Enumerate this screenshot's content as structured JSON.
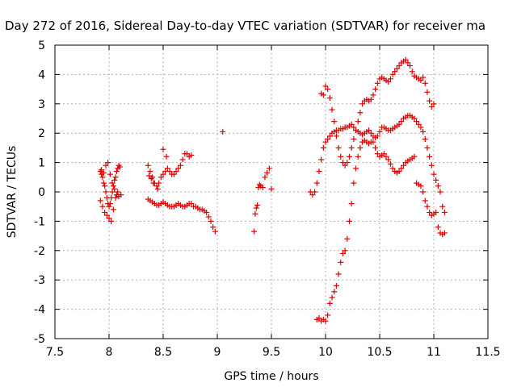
{
  "chart_data": {
    "type": "scatter",
    "title": "Day 272 of 2016, Sidereal Day-to-day VTEC variation (SDTVAR) for receiver ma",
    "xlabel": "GPS time / hours",
    "ylabel": "SDTVAR / TECUs",
    "xlim": [
      7.5,
      11.5
    ],
    "ylim": [
      -5,
      5
    ],
    "x_ticks": [
      7.5,
      8,
      8.5,
      9,
      9.5,
      10,
      10.5,
      11,
      11.5
    ],
    "x_tick_labels": [
      "7.5",
      "8",
      "8.5",
      "9",
      "9.5",
      "10",
      "10.5",
      "11",
      "11.5"
    ],
    "y_ticks": [
      -5,
      -4,
      -3,
      -2,
      -1,
      0,
      1,
      2,
      3,
      4,
      5
    ],
    "y_tick_labels": [
      "-5",
      "-4",
      "-3",
      "-2",
      "-1",
      "0",
      "1",
      "2",
      "3",
      "4",
      "5"
    ],
    "grid": true,
    "marker": "+",
    "marker_color": "#e00000",
    "series": [
      {
        "x": [
          7.92,
          7.93,
          7.94,
          7.95,
          7.96,
          7.97,
          7.98,
          7.99,
          8.0,
          8.01,
          8.02,
          8.03,
          8.04,
          8.05,
          8.06,
          8.07,
          8.08,
          8.09,
          8.1,
          7.92,
          7.94,
          7.96,
          7.98,
          8.0,
          8.02,
          8.04,
          8.06,
          8.08,
          7.93,
          7.95,
          7.97,
          7.99,
          8.01,
          8.03,
          8.05,
          8.07,
          8.09,
          8.11
        ],
        "y": [
          0.7,
          0.6,
          0.5,
          0.3,
          0.2,
          0.0,
          -0.2,
          -0.4,
          -0.5,
          -0.4,
          -0.2,
          0.0,
          0.2,
          0.4,
          0.5,
          0.7,
          0.8,
          0.9,
          0.85,
          -0.3,
          -0.5,
          -0.7,
          -0.8,
          -0.9,
          -1.0,
          -0.6,
          -0.2,
          0.0,
          0.75,
          0.65,
          0.9,
          1.0,
          0.6,
          0.3,
          0.1,
          -0.1,
          -0.15,
          -0.1
        ]
      },
      {
        "x": [
          8.36,
          8.38,
          8.4,
          8.42,
          8.44,
          8.46,
          8.48,
          8.5,
          8.52,
          8.54,
          8.56,
          8.58,
          8.6,
          8.62,
          8.64,
          8.66,
          8.68,
          8.7,
          8.72,
          8.74,
          8.76,
          8.36,
          8.38,
          8.4,
          8.42,
          8.44,
          8.46,
          8.48,
          8.5,
          8.52,
          8.54,
          8.56,
          8.58,
          8.6,
          8.62,
          8.64,
          8.66,
          8.68,
          8.7,
          8.72,
          8.74,
          8.76,
          8.78,
          8.8,
          8.82,
          8.84,
          8.86,
          8.88,
          8.9,
          8.92,
          8.94,
          8.96,
          8.98,
          8.37,
          8.39,
          8.41,
          8.45,
          8.5,
          8.53
        ],
        "y": [
          0.9,
          0.7,
          0.5,
          0.3,
          0.2,
          0.3,
          0.5,
          0.6,
          0.7,
          0.8,
          0.7,
          0.6,
          0.6,
          0.7,
          0.8,
          0.9,
          1.1,
          1.3,
          1.3,
          1.2,
          1.25,
          -0.25,
          -0.3,
          -0.35,
          -0.4,
          -0.45,
          -0.45,
          -0.4,
          -0.35,
          -0.4,
          -0.45,
          -0.5,
          -0.5,
          -0.5,
          -0.45,
          -0.4,
          -0.45,
          -0.5,
          -0.5,
          -0.45,
          -0.4,
          -0.4,
          -0.5,
          -0.5,
          -0.55,
          -0.6,
          -0.6,
          -0.65,
          -0.7,
          -0.85,
          -1.0,
          -1.2,
          -1.35,
          0.55,
          0.45,
          0.3,
          0.1,
          1.45,
          1.2
        ]
      },
      {
        "x": [
          9.05,
          9.34,
          9.35,
          9.36,
          9.37,
          9.38,
          9.39,
          9.4,
          9.42,
          9.44,
          9.46,
          9.48,
          9.5
        ],
        "y": [
          2.05,
          -1.35,
          -0.75,
          -0.55,
          -0.45,
          0.15,
          0.25,
          0.2,
          0.15,
          0.5,
          0.65,
          0.8,
          0.1
        ]
      },
      {
        "x": [
          9.86,
          9.88,
          9.9,
          9.92,
          9.94,
          9.96,
          9.98,
          10.0,
          10.02,
          10.04,
          10.06,
          10.08,
          10.1,
          10.12,
          10.14,
          10.16,
          10.18,
          10.2,
          10.22,
          10.24,
          10.26,
          10.28,
          10.3,
          10.32,
          10.34,
          10.36,
          10.38,
          10.4,
          10.42,
          10.44,
          10.46,
          10.48,
          10.5,
          10.52,
          10.54,
          10.56,
          10.58,
          10.6,
          10.62,
          10.64,
          10.66,
          10.68,
          10.7,
          10.72,
          10.74,
          10.76,
          10.78,
          10.8,
          10.82,
          10.84,
          10.86,
          10.88,
          10.9,
          10.92,
          10.94,
          10.96,
          10.98,
          11.0,
          11.02,
          11.04,
          11.06,
          11.08,
          11.1
        ],
        "y": [
          0.0,
          -0.1,
          0.0,
          0.3,
          0.7,
          1.1,
          1.5,
          1.7,
          1.8,
          1.9,
          2.0,
          2.05,
          2.1,
          2.1,
          2.15,
          2.15,
          2.2,
          2.2,
          2.25,
          2.3,
          2.2,
          2.1,
          2.05,
          2.0,
          1.95,
          2.0,
          2.05,
          2.1,
          2.0,
          1.9,
          1.85,
          1.9,
          2.05,
          2.2,
          2.2,
          2.15,
          2.1,
          2.1,
          2.15,
          2.2,
          2.25,
          2.3,
          2.4,
          2.5,
          2.55,
          2.6,
          2.6,
          2.55,
          2.5,
          2.4,
          2.3,
          2.2,
          2.05,
          1.8,
          1.5,
          1.2,
          0.9,
          0.6,
          0.4,
          0.2,
          0.0,
          -0.5,
          -0.7
        ]
      },
      {
        "x": [
          9.96,
          9.98,
          10.0,
          10.02,
          10.04,
          10.06,
          10.08,
          10.1,
          10.12,
          10.14,
          10.16,
          10.18,
          10.2,
          10.22,
          10.24,
          10.26,
          10.28,
          10.3,
          10.32,
          10.34,
          10.36,
          10.38,
          10.4,
          10.42,
          10.44,
          10.46,
          10.48,
          10.5,
          10.52,
          10.54,
          10.56,
          10.58,
          10.6,
          10.62,
          10.64,
          10.66,
          10.68,
          10.7,
          10.72,
          10.74,
          10.76,
          10.78,
          10.8,
          10.82,
          10.84,
          10.86,
          10.88,
          10.9,
          10.92,
          10.94,
          10.96,
          10.98,
          11.0
        ],
        "y": [
          3.35,
          3.3,
          3.6,
          3.5,
          3.2,
          2.8,
          2.4,
          1.9,
          1.5,
          1.2,
          1.0,
          0.9,
          1.0,
          1.2,
          1.5,
          1.8,
          2.1,
          2.4,
          2.7,
          3.0,
          3.1,
          3.15,
          3.1,
          3.15,
          3.3,
          3.5,
          3.7,
          3.85,
          3.9,
          3.85,
          3.8,
          3.75,
          3.85,
          4.0,
          4.1,
          4.2,
          4.3,
          4.4,
          4.45,
          4.5,
          4.4,
          4.3,
          4.1,
          3.95,
          3.9,
          3.85,
          3.8,
          3.9,
          3.7,
          3.4,
          3.1,
          2.9,
          3.0
        ]
      },
      {
        "x": [
          9.92,
          9.94,
          9.96,
          9.98,
          10.0,
          10.02,
          10.04,
          10.06,
          10.08,
          10.1,
          10.12,
          10.14,
          10.16,
          10.18,
          10.2,
          10.22,
          10.24,
          10.26,
          10.28,
          10.3,
          10.32,
          10.34,
          10.36,
          10.38,
          10.4,
          10.42,
          10.44,
          10.46,
          10.48,
          10.5,
          10.52,
          10.54,
          10.56,
          10.58,
          10.6,
          10.62,
          10.64,
          10.66,
          10.68,
          10.7,
          10.72,
          10.74,
          10.76,
          10.78,
          10.8,
          10.82,
          10.84,
          10.86,
          10.88,
          10.9,
          10.92,
          10.94,
          10.96,
          10.98,
          11.0,
          11.02,
          11.04,
          11.06,
          11.08,
          11.1
        ],
        "y": [
          -4.35,
          -4.3,
          -4.4,
          -4.35,
          -4.4,
          -4.2,
          -3.8,
          -3.6,
          -3.4,
          -3.2,
          -2.8,
          -2.4,
          -2.1,
          -2.0,
          -1.6,
          -1.0,
          -0.4,
          0.3,
          0.8,
          1.2,
          1.5,
          1.7,
          1.75,
          1.7,
          1.65,
          1.7,
          1.7,
          1.5,
          1.3,
          1.2,
          1.25,
          1.3,
          1.2,
          1.1,
          0.95,
          0.8,
          0.7,
          0.65,
          0.7,
          0.8,
          0.9,
          1.0,
          1.05,
          1.1,
          1.15,
          1.2,
          0.3,
          0.25,
          0.2,
          0.0,
          -0.3,
          -0.5,
          -0.7,
          -0.8,
          -0.75,
          -0.7,
          -1.2,
          -1.4,
          -1.45,
          -1.4
        ]
      }
    ]
  }
}
